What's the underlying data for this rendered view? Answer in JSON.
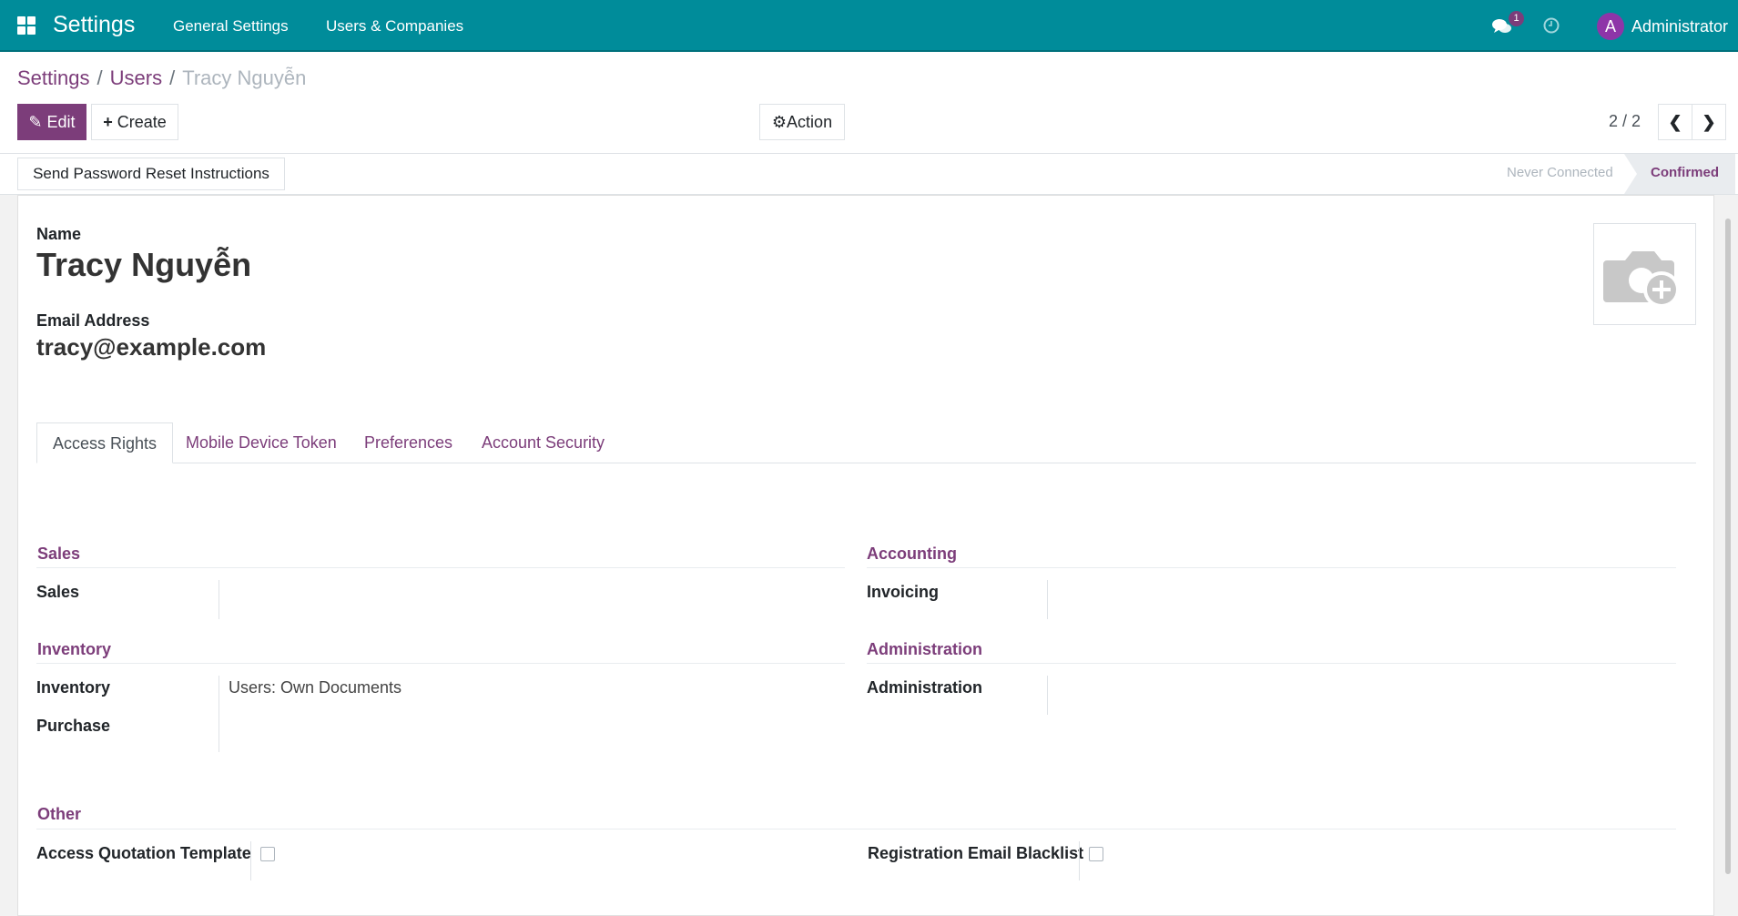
{
  "navbar": {
    "app_title": "Settings",
    "menus": [
      "General Settings",
      "Users & Companies"
    ],
    "message_count": "1",
    "user_initial": "A",
    "user_name": "Administrator",
    "color": "#008c9a"
  },
  "breadcrumb": [
    "Settings",
    "Users",
    "Tracy Nguyễn"
  ],
  "toolbar": {
    "edit_label": "Edit",
    "create_label": "Create",
    "action_label": "Action",
    "pager": "2 / 2"
  },
  "statusbar": {
    "reset_button": "Send Password Reset Instructions",
    "stages": [
      "Never Connected",
      "Confirmed"
    ],
    "active_stage": "Confirmed"
  },
  "form": {
    "name_label": "Name",
    "name": "Tracy Nguyễn",
    "email_label": "Email Address",
    "email": "tracy@example.com",
    "tabs": [
      "Access Rights",
      "Mobile Device Token",
      "Preferences",
      "Account Security"
    ],
    "active_tab": "Access Rights",
    "groups": {
      "sales": {
        "title": "Sales",
        "fields": [
          {
            "label": "Sales",
            "value": ""
          }
        ]
      },
      "accounting": {
        "title": "Accounting",
        "fields": [
          {
            "label": "Invoicing",
            "value": ""
          }
        ]
      },
      "inventory": {
        "title": "Inventory",
        "fields": [
          {
            "label": "Inventory",
            "value": "Users: Own Documents"
          },
          {
            "label": "Purchase",
            "value": ""
          }
        ]
      },
      "administration": {
        "title": "Administration",
        "fields": [
          {
            "label": "Administration",
            "value": ""
          }
        ]
      },
      "other": {
        "title": "Other",
        "fields": [
          {
            "label": "Access Quotation Template",
            "checked": false
          },
          {
            "label": "Registration Email Blacklist",
            "checked": false
          }
        ]
      }
    }
  },
  "accent": "#7c3d7a"
}
